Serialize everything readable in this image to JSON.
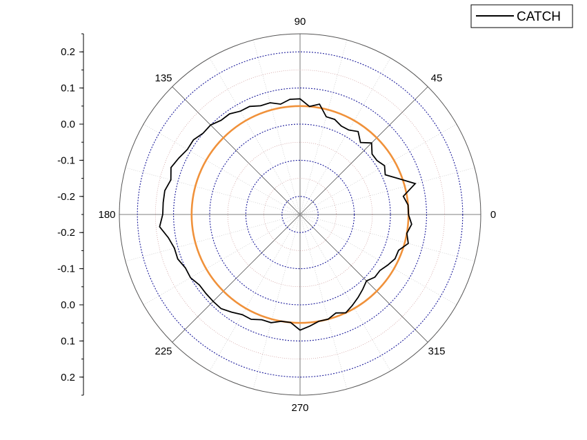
{
  "chart_data": {
    "type": "polar-line",
    "angle_unit": "degrees",
    "angular_tick_labels": [
      "0",
      "45",
      "90",
      "135",
      "180",
      "225",
      "270",
      "315"
    ],
    "radial_axis": {
      "range": [
        -0.3,
        0.2
      ],
      "tick_labels_upper": [
        "0.2",
        "0.1",
        "0.0",
        "-0.1",
        "-0.2"
      ],
      "tick_labels_lower": [
        "-0.2",
        "-0.1",
        "0.0",
        "0.1",
        "0.2"
      ],
      "grid_levels": [
        -0.25,
        -0.2,
        -0.15,
        -0.1,
        -0.05,
        0.0,
        0.05,
        0.1,
        0.15,
        0.2
      ],
      "major_levels": [
        -0.25,
        -0.15,
        -0.05,
        0.05,
        0.15
      ]
    },
    "grid": true,
    "legend_position": "top-right",
    "series": [
      {
        "name": "CATCH",
        "color": "#000000",
        "points": [
          [
            0,
            0.0
          ],
          [
            5,
            0.0
          ],
          [
            10,
            -0.01
          ],
          [
            15,
            0.03
          ],
          [
            20,
            -0.01
          ],
          [
            25,
            -0.04
          ],
          [
            30,
            -0.03
          ],
          [
            35,
            -0.04
          ],
          [
            40,
            -0.04
          ],
          [
            45,
            -0.02
          ],
          [
            50,
            -0.04
          ],
          [
            55,
            -0.02
          ],
          [
            60,
            -0.03
          ],
          [
            65,
            -0.03
          ],
          [
            70,
            -0.02
          ],
          [
            75,
            -0.02
          ],
          [
            80,
            0.01
          ],
          [
            85,
            0.0
          ],
          [
            90,
            0.02
          ],
          [
            95,
            0.02
          ],
          [
            100,
            0.01
          ],
          [
            105,
            0.02
          ],
          [
            110,
            0.02
          ],
          [
            115,
            0.03
          ],
          [
            120,
            0.03
          ],
          [
            125,
            0.04
          ],
          [
            130,
            0.04
          ],
          [
            135,
            0.05
          ],
          [
            140,
            0.05
          ],
          [
            145,
            0.06
          ],
          [
            150,
            0.06
          ],
          [
            155,
            0.07
          ],
          [
            160,
            0.08
          ],
          [
            165,
            0.07
          ],
          [
            170,
            0.08
          ],
          [
            175,
            0.08
          ],
          [
            180,
            0.08
          ],
          [
            185,
            0.09
          ],
          [
            190,
            0.07
          ],
          [
            195,
            0.06
          ],
          [
            200,
            0.06
          ],
          [
            205,
            0.05
          ],
          [
            210,
            0.05
          ],
          [
            215,
            0.04
          ],
          [
            220,
            0.04
          ],
          [
            225,
            0.04
          ],
          [
            230,
            0.04
          ],
          [
            235,
            0.03
          ],
          [
            240,
            0.02
          ],
          [
            245,
            0.02
          ],
          [
            250,
            0.01
          ],
          [
            255,
            0.01
          ],
          [
            260,
            0.0
          ],
          [
            265,
            0.0
          ],
          [
            270,
            0.02
          ],
          [
            275,
            0.01
          ],
          [
            280,
            0.0
          ],
          [
            285,
            0.0
          ],
          [
            290,
            -0.01
          ],
          [
            295,
            0.0
          ],
          [
            300,
            -0.01
          ],
          [
            305,
            -0.02
          ],
          [
            310,
            -0.03
          ],
          [
            315,
            -0.04
          ],
          [
            320,
            -0.03
          ],
          [
            325,
            -0.03
          ],
          [
            330,
            -0.02
          ],
          [
            335,
            -0.01
          ],
          [
            340,
            -0.01
          ],
          [
            345,
            0.01
          ],
          [
            350,
            0.0
          ],
          [
            355,
            0.01
          ]
        ]
      }
    ],
    "reference_circle": {
      "value": 0.0,
      "color": "#f0913a"
    },
    "legend": {
      "entries": [
        "CATCH"
      ]
    }
  }
}
